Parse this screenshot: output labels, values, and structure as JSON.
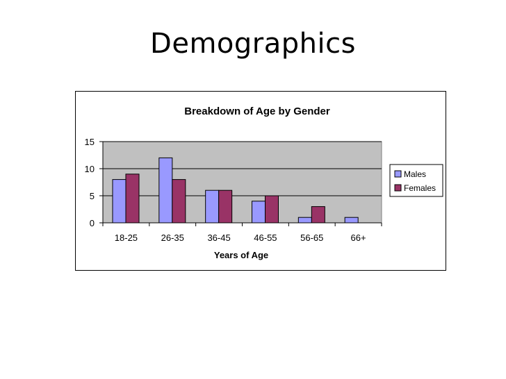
{
  "slide": {
    "title": "Demographics"
  },
  "chart_data": {
    "type": "bar",
    "title": "Breakdown of Age by Gender",
    "xlabel": "Years of Age",
    "ylabel": "",
    "categories": [
      "18-25",
      "26-35",
      "36-45",
      "46-55",
      "56-65",
      "66+"
    ],
    "series": [
      {
        "name": "Males",
        "values": [
          8,
          12,
          6,
          4,
          1,
          1
        ],
        "color": "#9999FF"
      },
      {
        "name": "Females",
        "values": [
          9,
          8,
          6,
          5,
          3,
          0
        ],
        "color": "#993366"
      }
    ],
    "ylim": [
      0,
      15
    ],
    "yticks": [
      0,
      5,
      10,
      15
    ],
    "grid": true,
    "legend": "right",
    "plot_background": "#C0C0C0"
  }
}
